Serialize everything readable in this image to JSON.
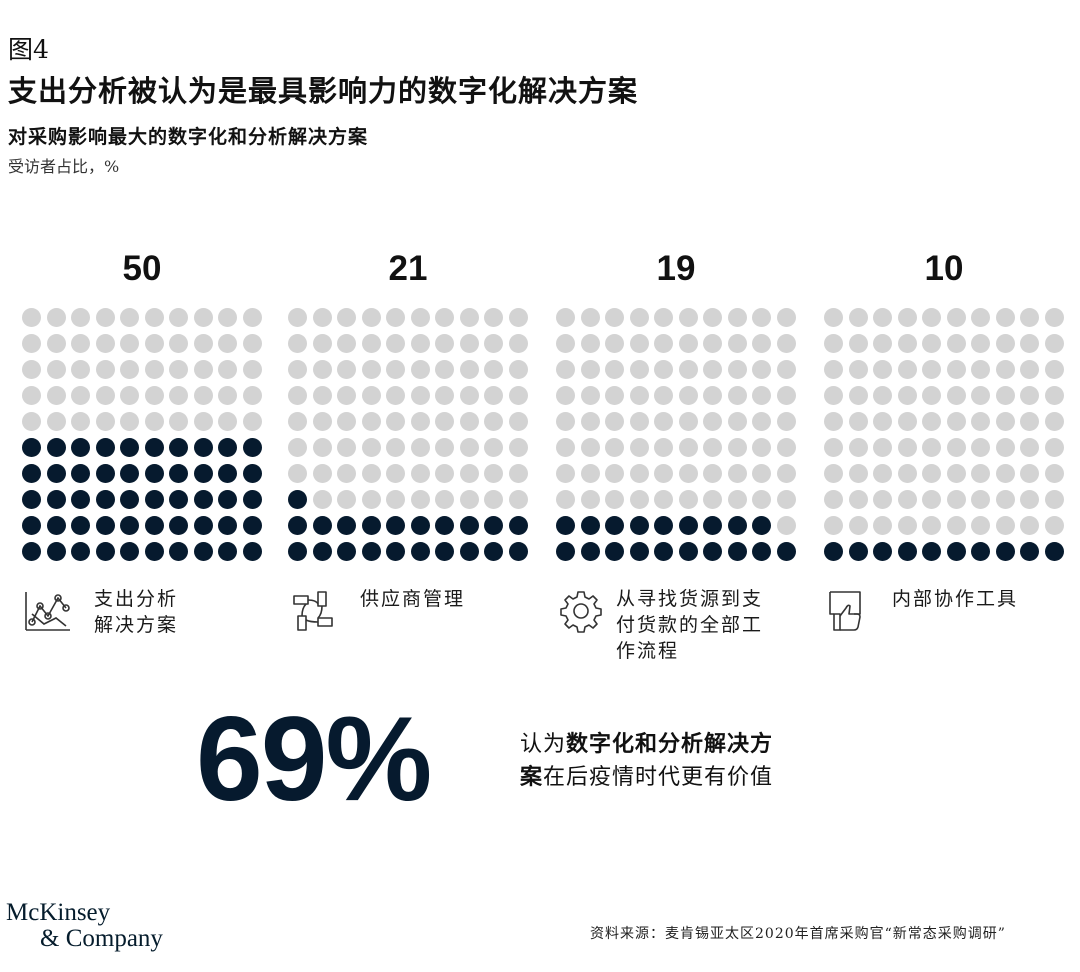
{
  "header": {
    "figure_label": "图4",
    "title": "支出分析被认为是最具影响力的数字化解决方案",
    "subtitle": "对采购影响最大的数字化和分析解决方案",
    "unit_note": "受访者占比，%"
  },
  "chart_data": {
    "type": "waffle",
    "title": "对采购影响最大的数字化和分析解决方案",
    "unit": "受访者占比，%",
    "grid": {
      "rows": 10,
      "cols": 10,
      "total": 100
    },
    "categories": [
      "支出分析解决方案",
      "供应商管理",
      "从寻找货源到支付货款的全部工作流程",
      "内部协作工具"
    ],
    "values": [
      50,
      21,
      19,
      10
    ],
    "colors": {
      "filled": "#061a2e",
      "empty": "#d3d3d3"
    }
  },
  "panels": [
    {
      "value": "50",
      "label_lines": [
        "支出分析",
        "解决方案"
      ],
      "icon": "line-chart-icon"
    },
    {
      "value": "21",
      "label_lines": [
        "供应商管理"
      ],
      "icon": "handshake-circle-icon"
    },
    {
      "value": "19",
      "label_lines": [
        "从寻找货源到支",
        "付货款的全部工",
        "作流程"
      ],
      "icon": "gear-icon"
    },
    {
      "value": "10",
      "label_lines": [
        "内部协作工具"
      ],
      "icon": "thumbs-up-icon"
    }
  ],
  "highlight": {
    "percent": "69%",
    "prefix": "认为",
    "strong_1": "数字化和分析解决方",
    "strong_2": "案",
    "suffix": "在后疫情时代更有价值"
  },
  "footer": {
    "logo_line1": "McKinsey",
    "logo_line2": "& Company",
    "source": "资料来源：麦肯锡亚太区2020年首席采购官“新常态采购调研”"
  }
}
